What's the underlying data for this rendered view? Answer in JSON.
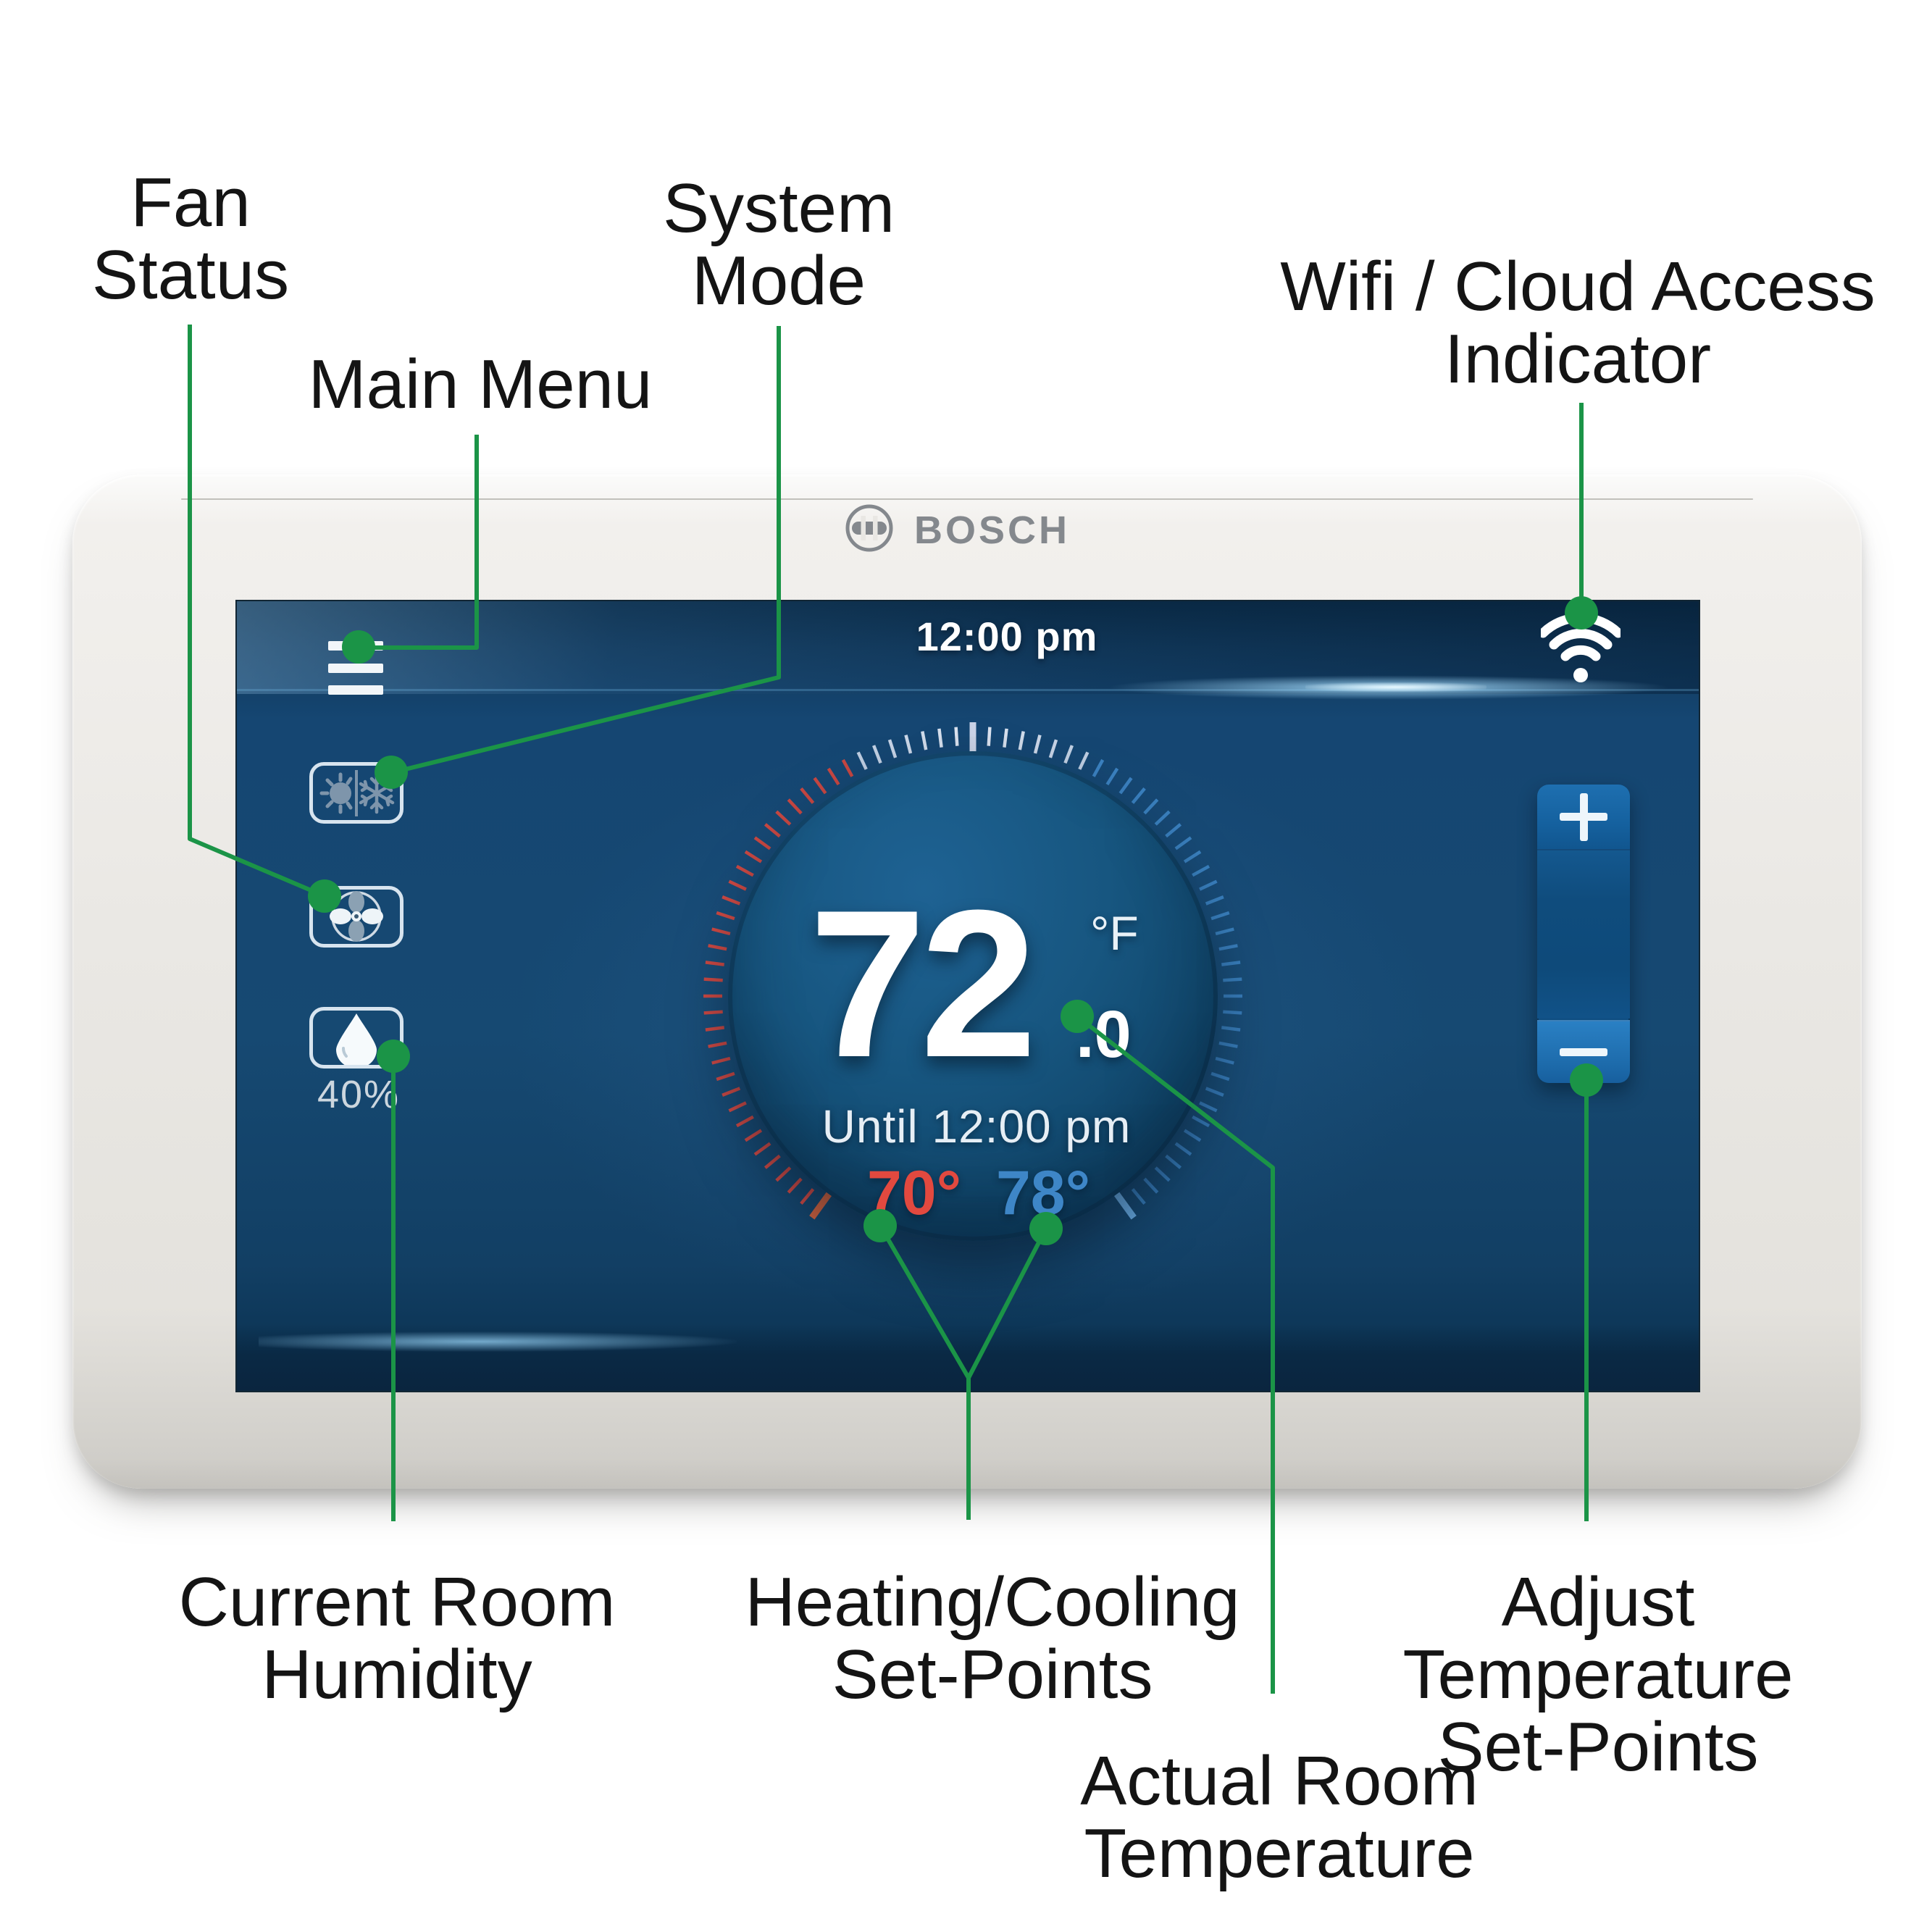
{
  "colors": {
    "green": "#1b9447",
    "heat": "#e2493f",
    "cool": "#3e86c7",
    "tick-top": "#c9d6ea",
    "label": "#141414",
    "logo-gray": "#84888d"
  },
  "device": {
    "brand": "BOSCH",
    "brand_icon": "bosch-armature-icon"
  },
  "screen": {
    "header": {
      "time": "12:00 pm",
      "menu_icon": "hamburger-icon",
      "wifi_icon": "wifi-icon"
    },
    "side_buttons": {
      "system_mode_icon": "sun-snowflake-icon",
      "fan_icon": "fan-icon",
      "humidity_icon": "droplet-icon",
      "humidity_value": "40%"
    },
    "dial": {
      "temperature": "72",
      "temperature_decimal": ".0",
      "unit": "°F",
      "schedule": "Until 12:00 pm",
      "heat_setpoint": "70°",
      "cool_setpoint": "78°"
    },
    "slider": {
      "increase_icon": "plus-icon",
      "decrease_icon": "minus-icon"
    }
  },
  "callouts": {
    "fan_status": {
      "line1": "Fan",
      "line2": "Status"
    },
    "main_menu": {
      "line1": "Main Menu"
    },
    "system_mode": {
      "line1": "System",
      "line2": "Mode"
    },
    "wifi": {
      "line1": "Wifi / Cloud Access",
      "line2": "Indicator"
    },
    "current_humidity": {
      "line1": "Current Room",
      "line2": "Humidity"
    },
    "heating_cooling": {
      "line1": "Heating/Cooling",
      "line2": "Set-Points"
    },
    "adjust_temp": {
      "line1": "Adjust Temperature",
      "line2": "Set-Points"
    },
    "actual_temp": {
      "line1": "Actual Room",
      "line2": "Temperature"
    }
  }
}
